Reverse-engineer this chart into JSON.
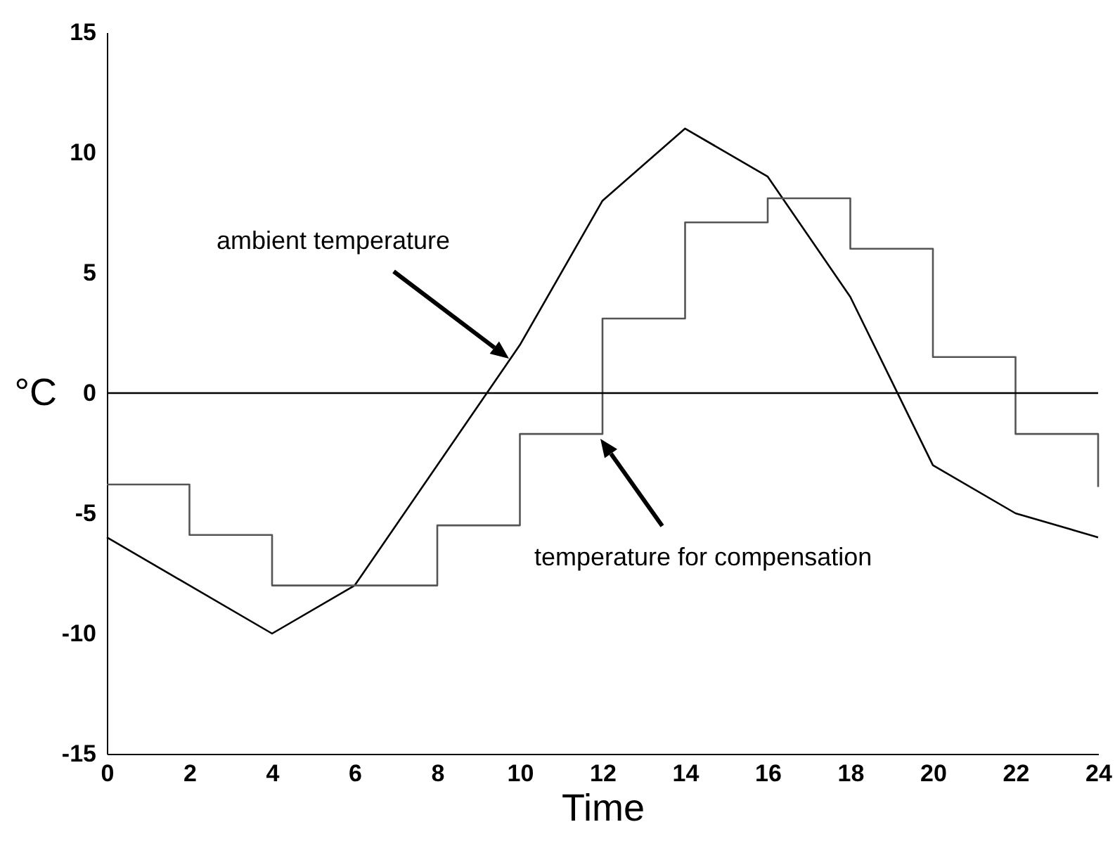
{
  "chart_data": {
    "type": "line",
    "xlabel": "Time",
    "ylabel": "°C",
    "xlim": [
      0,
      24
    ],
    "xticks": [
      0,
      2,
      4,
      6,
      8,
      10,
      12,
      14,
      16,
      18,
      20,
      22,
      24
    ],
    "ylim": [
      -15,
      15
    ],
    "yticks": [
      -15,
      -10,
      -5,
      0,
      5,
      10,
      15
    ],
    "series": [
      {
        "type": "line",
        "color": "#000000",
        "x": [
          0,
          4,
          6,
          10,
          12,
          14,
          16,
          18,
          20,
          22,
          24
        ],
        "values": [
          -6,
          -10,
          -8,
          2,
          8,
          11,
          9,
          4,
          -3,
          -5,
          -6
        ]
      },
      {
        "type": "step",
        "color": "#555555",
        "x": [
          0,
          2,
          4,
          6,
          8,
          10,
          12,
          14,
          16,
          18,
          20,
          22,
          24
        ],
        "values": [
          -3.8,
          -5.9,
          -8,
          -8,
          -5.5,
          -1.7,
          3.1,
          7.1,
          8.1,
          6,
          1.5,
          -1.7,
          -3.9
        ]
      }
    ],
    "ref_lines": [
      {
        "axis": "y",
        "value": 0,
        "color": "#000000"
      }
    ],
    "annotations": [
      "ambient temperature",
      "temperature for compensation"
    ]
  }
}
